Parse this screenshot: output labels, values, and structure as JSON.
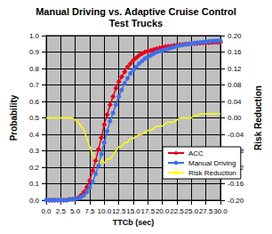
{
  "chart_data": {
    "type": "line",
    "title": "Manual Driving vs. Adaptive Cruise Control",
    "subtitle": "Test Trucks",
    "x_label": "TTCb (sec)",
    "y_label": "Probability",
    "y2_label": "Risk Reduction",
    "x": [
      0,
      0.5,
      1,
      1.5,
      2,
      2.5,
      3,
      3.5,
      4,
      4.5,
      5,
      5.5,
      6,
      6.5,
      7,
      7.5,
      8,
      8.5,
      9,
      9.5,
      10,
      10.5,
      11,
      11.5,
      12,
      12.5,
      13,
      13.5,
      14,
      14.5,
      15,
      15.5,
      16,
      16.5,
      17,
      17.5,
      18,
      18.5,
      19,
      19.5,
      20,
      20.5,
      21,
      21.5,
      22,
      22.5,
      23,
      23.5,
      24,
      24.5,
      25,
      25.5,
      26,
      26.5,
      27,
      27.5,
      28,
      28.5,
      29,
      29.5,
      30
    ],
    "series": [
      {
        "name": "ACC",
        "color": "#e8001c",
        "marker": "diamond",
        "line_style": "solid",
        "values": [
          0,
          0,
          0,
          0,
          0,
          0,
          0,
          0,
          0.005,
          0.005,
          0.01,
          0.015,
          0.03,
          0.05,
          0.08,
          0.12,
          0.18,
          0.24,
          0.31,
          0.38,
          0.46,
          0.52,
          0.58,
          0.63,
          0.68,
          0.72,
          0.75,
          0.78,
          0.81,
          0.83,
          0.85,
          0.865,
          0.88,
          0.89,
          0.9,
          0.905,
          0.91,
          0.915,
          0.92,
          0.925,
          0.93,
          0.932,
          0.935,
          0.937,
          0.94,
          0.942,
          0.944,
          0.946,
          0.948,
          0.95,
          0.951,
          0.952,
          0.953,
          0.954,
          0.955,
          0.956,
          0.957,
          0.958,
          0.959,
          0.96,
          0.96
        ]
      },
      {
        "name": "Manual Driving",
        "color": "#3f6fe8",
        "marker": "circle",
        "line_style": "solid",
        "values": [
          0,
          0,
          0,
          0,
          0,
          0,
          0,
          0,
          0.003,
          0.005,
          0.008,
          0.012,
          0.02,
          0.03,
          0.05,
          0.08,
          0.11,
          0.16,
          0.21,
          0.28,
          0.35,
          0.42,
          0.48,
          0.53,
          0.58,
          0.63,
          0.67,
          0.71,
          0.74,
          0.77,
          0.79,
          0.81,
          0.83,
          0.845,
          0.86,
          0.87,
          0.88,
          0.89,
          0.9,
          0.905,
          0.91,
          0.915,
          0.92,
          0.925,
          0.93,
          0.935,
          0.94,
          0.943,
          0.946,
          0.949,
          0.952,
          0.955,
          0.957,
          0.959,
          0.961,
          0.963,
          0.965,
          0.967,
          0.968,
          0.969,
          0.97
        ]
      },
      {
        "name": "Risk Reduction",
        "color": "#ffff00",
        "marker": "none",
        "line_style": "solid",
        "axis": "y2",
        "values": [
          0,
          0,
          0,
          0,
          0,
          0,
          0,
          0,
          0,
          0,
          -0.005,
          -0.01,
          -0.02,
          -0.03,
          -0.05,
          -0.07,
          -0.09,
          -0.1,
          -0.12,
          -0.1,
          -0.11,
          -0.1,
          -0.1,
          -0.09,
          -0.08,
          -0.07,
          -0.07,
          -0.06,
          -0.06,
          -0.05,
          -0.05,
          -0.045,
          -0.04,
          -0.04,
          -0.035,
          -0.03,
          -0.03,
          -0.025,
          -0.02,
          -0.02,
          -0.02,
          -0.015,
          -0.01,
          -0.01,
          -0.01,
          -0.005,
          0,
          0,
          0,
          0,
          0,
          0.005,
          0.005,
          0.01,
          0.01,
          0.01,
          0.01,
          0.01,
          0.01,
          0.01,
          0.01
        ]
      }
    ],
    "xlim": [
      0,
      30
    ],
    "xticks": [
      {
        "value": 0,
        "label": "0.0"
      },
      2.5,
      {
        "value": 5,
        "label": "5.0"
      },
      7.5,
      {
        "value": 10,
        "label": "10.0"
      },
      12.5,
      {
        "value": 15,
        "label": "15.0"
      },
      17.5,
      {
        "value": 20,
        "label": "20.0"
      },
      22.5,
      {
        "value": 25,
        "label": "25.0"
      },
      27.5,
      {
        "value": 30,
        "label": "30.0"
      }
    ],
    "ylim": [
      0,
      1
    ],
    "yticks": [
      {
        "value": 0,
        "label": "0.0"
      },
      0.1,
      0.2,
      0.3,
      0.4,
      0.5,
      0.6,
      0.7,
      0.8,
      0.9,
      {
        "value": 1,
        "label": "1.0"
      }
    ],
    "y2lim": [
      -0.2,
      0.2
    ],
    "y2ticks": [
      {
        "value": -0.2,
        "label": "-0.20"
      },
      {
        "value": -0.16,
        "label": "-0.16"
      },
      {
        "value": -0.12,
        "label": "-0.12"
      },
      {
        "value": -0.08,
        "label": "-0.08"
      },
      {
        "value": -0.04,
        "label": "-0.04"
      },
      {
        "value": 0,
        "label": "0.00"
      },
      {
        "value": 0.04,
        "label": "0.04"
      },
      {
        "value": 0.08,
        "label": "0.08"
      },
      {
        "value": 0.12,
        "label": "0.12"
      },
      {
        "value": 0.16,
        "label": "0.16"
      },
      {
        "value": 0.2,
        "label": "0.20"
      }
    ],
    "grid": true,
    "legend": "lower right"
  }
}
